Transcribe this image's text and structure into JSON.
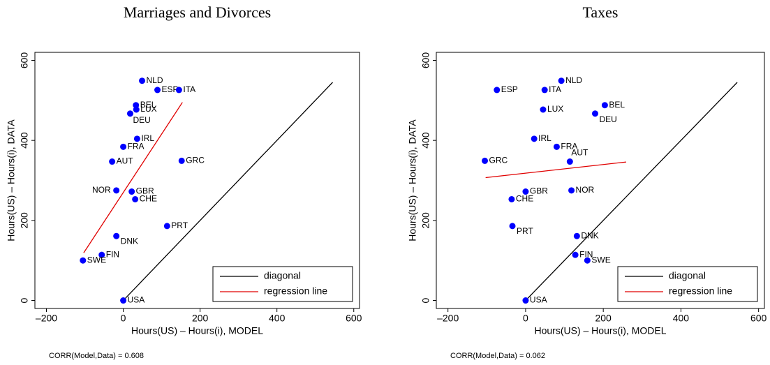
{
  "chart_data": [
    {
      "type": "scatter",
      "title": "Marriages and Divorces",
      "x_label": "Hours(US) – Hours(i), MODEL",
      "y_label": "Hours(US) – Hours(i), DATA",
      "note": "CORR(Model,Data) = 0.608",
      "xlim": [
        -230,
        615
      ],
      "ylim": [
        -20,
        620
      ],
      "xticks": [
        {
          "value": -200,
          "label": "–200"
        },
        0,
        200,
        400,
        600
      ],
      "yticks": [
        0,
        200,
        400,
        600
      ],
      "points": {
        "color": "#0000ff",
        "labels": [
          "NLD",
          "ESP",
          "ITA",
          "BEL",
          "LUX",
          "DEU",
          "IRL",
          "FRA",
          "AUT",
          "GRC",
          "NOR",
          "GBR",
          "CHE",
          "DNK",
          "PRT",
          "FIN",
          "SWE",
          "USA"
        ],
        "x": [
          49,
          89,
          145,
          33,
          34,
          18,
          36,
          0,
          -29,
          152,
          -18,
          22,
          31,
          -18,
          114,
          -56,
          -105,
          0
        ],
        "y": [
          549,
          526,
          526,
          488,
          477,
          467,
          404,
          384,
          347,
          349,
          275,
          272,
          253,
          161,
          186,
          114,
          100,
          0
        ]
      },
      "lines": [
        {
          "name": "diagonal",
          "color": "#000000",
          "x": [
            0,
            545
          ],
          "y": [
            0,
            545
          ]
        },
        {
          "name": "regression line",
          "color": "#e00000",
          "x": [
            -103,
            154
          ],
          "y": [
            119,
            495
          ]
        }
      ]
    },
    {
      "type": "scatter",
      "title": "Taxes",
      "x_label": "Hours(US) – Hours(i), MODEL",
      "y_label": "Hours(US) – Hours(i), DATA",
      "note": "CORR(Model,Data) = 0.062",
      "xlim": [
        -230,
        615
      ],
      "ylim": [
        -20,
        620
      ],
      "xticks": [
        {
          "value": -200,
          "label": "–200"
        },
        0,
        200,
        400,
        600
      ],
      "yticks": [
        0,
        200,
        400,
        600
      ],
      "points": {
        "color": "#0000ff",
        "labels": [
          "NLD",
          "ESP",
          "ITA",
          "BEL",
          "LUX",
          "DEU",
          "IRL",
          "FRA",
          "AUT",
          "GRC",
          "NOR",
          "GBR",
          "CHE",
          "DNK",
          "PRT",
          "FIN",
          "SWE",
          "USA"
        ],
        "x": [
          92,
          -74,
          49,
          204,
          45,
          179,
          22,
          80,
          114,
          -105,
          118,
          0,
          -36,
          132,
          -34,
          128,
          159,
          0
        ],
        "y": [
          549,
          526,
          526,
          488,
          477,
          467,
          404,
          384,
          347,
          349,
          275,
          272,
          253,
          161,
          186,
          114,
          100,
          0
        ]
      },
      "lines": [
        {
          "name": "diagonal",
          "color": "#000000",
          "x": [
            0,
            545
          ],
          "y": [
            0,
            545
          ]
        },
        {
          "name": "regression line",
          "color": "#e00000",
          "x": [
            -103,
            259
          ],
          "y": [
            307,
            346
          ]
        }
      ]
    }
  ]
}
